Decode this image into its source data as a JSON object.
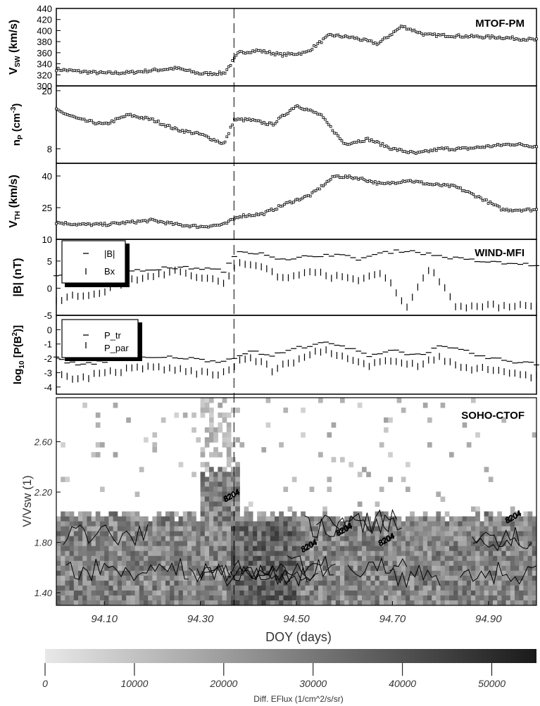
{
  "chart_data": [
    {
      "type": "scatter",
      "instrument": "MTOF-PM",
      "ylabel": "V",
      "ylabel_sub": "SW",
      "ylabel_unit": " (km/s)",
      "ylim": [
        300,
        440
      ],
      "yticks": [
        "300",
        "320",
        "340",
        "360",
        "380",
        "400",
        "420",
        "440"
      ],
      "x": [
        94.0,
        94.05,
        94.1,
        94.15,
        94.2,
        94.25,
        94.3,
        94.35,
        94.38,
        94.42,
        94.47,
        94.52,
        94.57,
        94.62,
        94.67,
        94.72,
        94.77,
        94.82,
        94.87,
        94.92,
        94.97,
        95.0
      ],
      "y": [
        330,
        326,
        323,
        324,
        328,
        332,
        322,
        323,
        360,
        364,
        356,
        360,
        392,
        387,
        376,
        408,
        392,
        391,
        389,
        388,
        385,
        383
      ]
    },
    {
      "type": "scatter",
      "ylabel": "n",
      "ylabel_sub": "P",
      "ylabel_unit": " (cm",
      "ylabel_sup": "-3",
      "ylim": [
        5,
        21
      ],
      "yticks": [
        "8",
        "20"
      ],
      "x": [
        94.0,
        94.05,
        94.1,
        94.15,
        94.2,
        94.25,
        94.3,
        94.35,
        94.37,
        94.4,
        94.45,
        94.5,
        94.55,
        94.6,
        94.65,
        94.7,
        94.75,
        94.8,
        94.85,
        94.9,
        94.95,
        95.0
      ],
      "y": [
        16,
        14,
        13,
        15,
        14,
        12,
        11,
        9,
        14,
        14,
        13,
        17,
        15,
        9,
        10,
        8,
        7,
        8,
        8,
        8.5,
        9,
        8.5
      ]
    },
    {
      "type": "scatter",
      "ylabel": "V",
      "ylabel_sub": "TH",
      "ylabel_unit": " (km/s)",
      "ylim": [
        10,
        46
      ],
      "yticks": [
        "10",
        "25",
        "40"
      ],
      "x": [
        94.0,
        94.05,
        94.1,
        94.15,
        94.2,
        94.25,
        94.3,
        94.35,
        94.38,
        94.43,
        94.48,
        94.53,
        94.58,
        94.63,
        94.68,
        94.73,
        94.78,
        94.83,
        94.88,
        94.93,
        95.0
      ],
      "y": [
        18,
        17,
        17,
        18,
        19,
        17,
        16,
        17,
        21,
        22,
        27,
        31,
        40,
        39,
        36,
        38,
        36,
        35,
        30,
        24,
        24
      ]
    },
    {
      "type": "scatter",
      "instrument": "WIND-MFI",
      "ylabel": "|B| (nT)",
      "ylim": [
        -5,
        9
      ],
      "yticks": [
        "-5",
        "0",
        "5"
      ],
      "legend": [
        "|B|",
        "Bx"
      ],
      "series": [
        {
          "name": "|B|",
          "x": [
            94.0,
            94.05,
            94.1,
            94.15,
            94.2,
            94.25,
            94.3,
            94.35,
            94.38,
            94.43,
            94.48,
            94.53,
            94.58,
            94.63,
            94.68,
            94.73,
            94.78,
            94.83,
            94.88,
            94.93,
            95.0
          ],
          "y": [
            2.5,
            2.3,
            2.6,
            3.0,
            3.5,
            3.8,
            3.7,
            3.2,
            6.8,
            6.5,
            5.0,
            6.0,
            6.2,
            5.4,
            6.5,
            7.0,
            6.2,
            5.5,
            5.0,
            4.6,
            4.3
          ]
        },
        {
          "name": "Bx",
          "x": [
            94.0,
            94.05,
            94.1,
            94.15,
            94.2,
            94.25,
            94.3,
            94.35,
            94.38,
            94.43,
            94.48,
            94.53,
            94.58,
            94.63,
            94.68,
            94.73,
            94.78,
            94.83,
            94.88,
            94.93,
            95.0
          ],
          "y": [
            -2.0,
            -1.5,
            -0.5,
            1.5,
            2.5,
            3.0,
            2.0,
            1.0,
            4.5,
            4.0,
            1.5,
            3.5,
            2.0,
            1.5,
            3.0,
            -3.5,
            4.0,
            -3.0,
            -3.5,
            -3.2,
            -3.0
          ]
        }
      ]
    },
    {
      "type": "scatter",
      "ylabel": "log",
      "ylabel_sub": "10",
      "ylabel_unit": " [P(B",
      "ylabel_sup": "2",
      "ylabel_end": ")]",
      "ylim": [
        -4.5,
        1
      ],
      "yticks": [
        "-4",
        "-3",
        "-2",
        "-1",
        "0"
      ],
      "legend": [
        "P_tr",
        "P_par"
      ],
      "series": [
        {
          "name": "P_tr",
          "x": [
            94.0,
            94.05,
            94.1,
            94.15,
            94.2,
            94.25,
            94.3,
            94.35,
            94.4,
            94.45,
            94.5,
            94.55,
            94.6,
            94.65,
            94.7,
            94.75,
            94.8,
            94.85,
            94.9,
            94.95,
            95.0
          ],
          "y": [
            -2.0,
            -2.5,
            -2.2,
            -1.9,
            -2.0,
            -1.9,
            -2.1,
            -2.2,
            -1.5,
            -1.8,
            -1.3,
            -0.9,
            -1.2,
            -1.8,
            -1.4,
            -1.8,
            -1.2,
            -1.5,
            -2.0,
            -2.2,
            -2.4
          ]
        },
        {
          "name": "P_par",
          "x": [
            94.0,
            94.05,
            94.1,
            94.15,
            94.2,
            94.25,
            94.3,
            94.35,
            94.4,
            94.45,
            94.5,
            94.55,
            94.6,
            94.65,
            94.7,
            94.75,
            94.8,
            94.85,
            94.9,
            94.95,
            95.0
          ],
          "y": [
            -3.2,
            -3.4,
            -3.0,
            -2.8,
            -2.6,
            -2.8,
            -3.0,
            -3.1,
            -1.8,
            -2.8,
            -2.2,
            -1.4,
            -2.0,
            -2.6,
            -2.0,
            -2.5,
            -2.0,
            -2.6,
            -2.8,
            -3.0,
            -3.3
          ]
        }
      ]
    },
    {
      "type": "heatmap",
      "instrument": "SOHO-CTOF",
      "ylabel": "V/Vsw (1)",
      "xlabel": "DOY (days)",
      "ylim": [
        1.3,
        2.95
      ],
      "yticks": [
        "1.40",
        "1.80",
        "2.20",
        "2.60"
      ],
      "xlim": [
        94.0,
        95.0
      ],
      "xticks": [
        "94.10",
        "94.30",
        "94.50",
        "94.70",
        "94.90"
      ],
      "contour_labels": [
        "8204",
        "8204",
        "8204",
        "8204",
        "8204"
      ],
      "colorbar": {
        "ticks": [
          "0",
          "10000",
          "20000",
          "30000",
          "40000",
          "50000"
        ],
        "max": 55000,
        "label": "Diff. EFlux (1/cm^2/s/sr)",
        "color_low": "#e8e8e8",
        "color_high": "#1a1a1a"
      }
    }
  ],
  "event_marker_doy": 94.37
}
